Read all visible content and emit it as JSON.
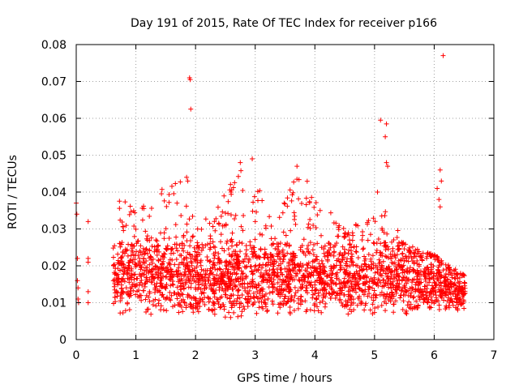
{
  "chart_data": {
    "type": "scatter",
    "title": "Day 191 of 2015, Rate Of TEC Index for receiver p166",
    "xlabel": "GPS time / hours",
    "ylabel": "ROTI / TECUs",
    "xlim": [
      0,
      7
    ],
    "ylim": [
      0,
      0.08
    ],
    "xticks": [
      0,
      1,
      2,
      3,
      4,
      5,
      6,
      7
    ],
    "yticks": [
      0,
      0.01,
      0.02,
      0.03,
      0.04,
      0.05,
      0.06,
      0.07,
      0.08
    ],
    "grid": true,
    "marker": "plus",
    "series_color": "#ff0000",
    "outliers": [
      {
        "x": 0.0,
        "y": 0.037
      },
      {
        "x": 0.01,
        "y": 0.034
      },
      {
        "x": 0.02,
        "y": 0.022
      },
      {
        "x": 0.02,
        "y": 0.016
      },
      {
        "x": 0.03,
        "y": 0.014
      },
      {
        "x": 0.03,
        "y": 0.011
      },
      {
        "x": 0.04,
        "y": 0.01
      },
      {
        "x": 0.2,
        "y": 0.032
      },
      {
        "x": 0.2,
        "y": 0.022
      },
      {
        "x": 0.2,
        "y": 0.021
      },
      {
        "x": 0.2,
        "y": 0.013
      },
      {
        "x": 0.2,
        "y": 0.01
      },
      {
        "x": 1.9,
        "y": 0.071
      },
      {
        "x": 1.91,
        "y": 0.0705
      },
      {
        "x": 1.92,
        "y": 0.0625
      },
      {
        "x": 1.85,
        "y": 0.044
      },
      {
        "x": 1.87,
        "y": 0.043
      },
      {
        "x": 2.75,
        "y": 0.048
      },
      {
        "x": 2.95,
        "y": 0.049
      },
      {
        "x": 3.7,
        "y": 0.047
      },
      {
        "x": 5.1,
        "y": 0.0595
      },
      {
        "x": 5.2,
        "y": 0.0585
      },
      {
        "x": 5.18,
        "y": 0.055
      },
      {
        "x": 5.2,
        "y": 0.048
      },
      {
        "x": 5.22,
        "y": 0.047
      },
      {
        "x": 5.05,
        "y": 0.04
      },
      {
        "x": 6.15,
        "y": 0.077
      },
      {
        "x": 6.1,
        "y": 0.046
      },
      {
        "x": 6.12,
        "y": 0.043
      },
      {
        "x": 6.05,
        "y": 0.041
      },
      {
        "x": 6.08,
        "y": 0.038
      },
      {
        "x": 6.1,
        "y": 0.036
      }
    ],
    "dense_band": {
      "x_range": [
        0.62,
        6.52
      ],
      "typical_range": [
        0.005,
        0.028
      ],
      "upper_envelope": [
        {
          "x": 0.7,
          "y": 0.039
        },
        {
          "x": 1.0,
          "y": 0.035
        },
        {
          "x": 1.5,
          "y": 0.042
        },
        {
          "x": 1.8,
          "y": 0.044
        },
        {
          "x": 2.0,
          "y": 0.03
        },
        {
          "x": 2.5,
          "y": 0.04
        },
        {
          "x": 2.75,
          "y": 0.048
        },
        {
          "x": 3.0,
          "y": 0.046
        },
        {
          "x": 3.3,
          "y": 0.03
        },
        {
          "x": 3.7,
          "y": 0.047
        },
        {
          "x": 4.0,
          "y": 0.04
        },
        {
          "x": 4.5,
          "y": 0.03
        },
        {
          "x": 5.0,
          "y": 0.034
        },
        {
          "x": 5.2,
          "y": 0.036
        },
        {
          "x": 5.5,
          "y": 0.026
        },
        {
          "x": 6.0,
          "y": 0.023
        },
        {
          "x": 6.5,
          "y": 0.018
        }
      ],
      "lower_envelope": [
        {
          "x": 0.7,
          "y": 0.007
        },
        {
          "x": 1.5,
          "y": 0.006
        },
        {
          "x": 2.4,
          "y": 0.004
        },
        {
          "x": 3.5,
          "y": 0.006
        },
        {
          "x": 4.5,
          "y": 0.006
        },
        {
          "x": 5.5,
          "y": 0.006
        },
        {
          "x": 6.5,
          "y": 0.008
        }
      ],
      "approx_point_count": 2600
    }
  }
}
